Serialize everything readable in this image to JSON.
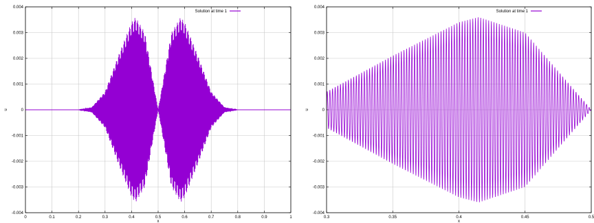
{
  "chart_data": [
    {
      "type": "line",
      "title": "",
      "xlabel": "x",
      "ylabel": "u",
      "xlim": [
        0,
        1
      ],
      "ylim": [
        -0.004,
        0.004
      ],
      "xticks": [
        "0",
        "0.1",
        "0.2",
        "0.3",
        "0.4",
        "0.5",
        "0.6",
        "0.7",
        "0.8",
        "0.9",
        "1"
      ],
      "yticks": [
        "0.004",
        "0.003",
        "0.002",
        "0.001",
        "0",
        "-0.001",
        "-0.002",
        "-0.003",
        "-0.004"
      ],
      "grid": true,
      "legend_position": "top-right",
      "series": [
        {
          "name": "Solution at time 1",
          "color": "#9400d3",
          "description_values": {
            "envelope_x": [
              0,
              0.2,
              0.25,
              0.3,
              0.35,
              0.4,
              0.415,
              0.45,
              0.5,
              0.55,
              0.585,
              0.6,
              0.65,
              0.7,
              0.75,
              0.8,
              1
            ],
            "envelope_amplitude": [
              0,
              0,
              0.0001,
              0.0007,
              0.0021,
              0.0034,
              0.0036,
              0.003,
              0,
              0.003,
              0.0036,
              0.0034,
              0.0021,
              0.0007,
              0.0001,
              0,
              0
            ]
          }
        }
      ]
    },
    {
      "type": "line",
      "title": "",
      "xlabel": "x",
      "ylabel": "u",
      "xlim": [
        0.3,
        0.5
      ],
      "ylim": [
        -0.004,
        0.004
      ],
      "xticks": [
        "0.3",
        "0.35",
        "0.4",
        "0.45",
        "0.5"
      ],
      "yticks": [
        "0.004",
        "0.003",
        "0.002",
        "0.001",
        "0",
        "-0.001",
        "-0.002",
        "-0.003",
        "-0.004"
      ],
      "grid": true,
      "legend_position": "top-right",
      "series": [
        {
          "name": "Solution at time 1",
          "color": "#9400d3",
          "description_values": {
            "envelope_x": [
              0.3,
              0.35,
              0.4,
              0.415,
              0.45,
              0.5
            ],
            "envelope_amplitude": [
              0.0007,
              0.0021,
              0.0034,
              0.0036,
              0.003,
              0
            ],
            "oscillation_count_visible": 100
          }
        }
      ]
    }
  ]
}
